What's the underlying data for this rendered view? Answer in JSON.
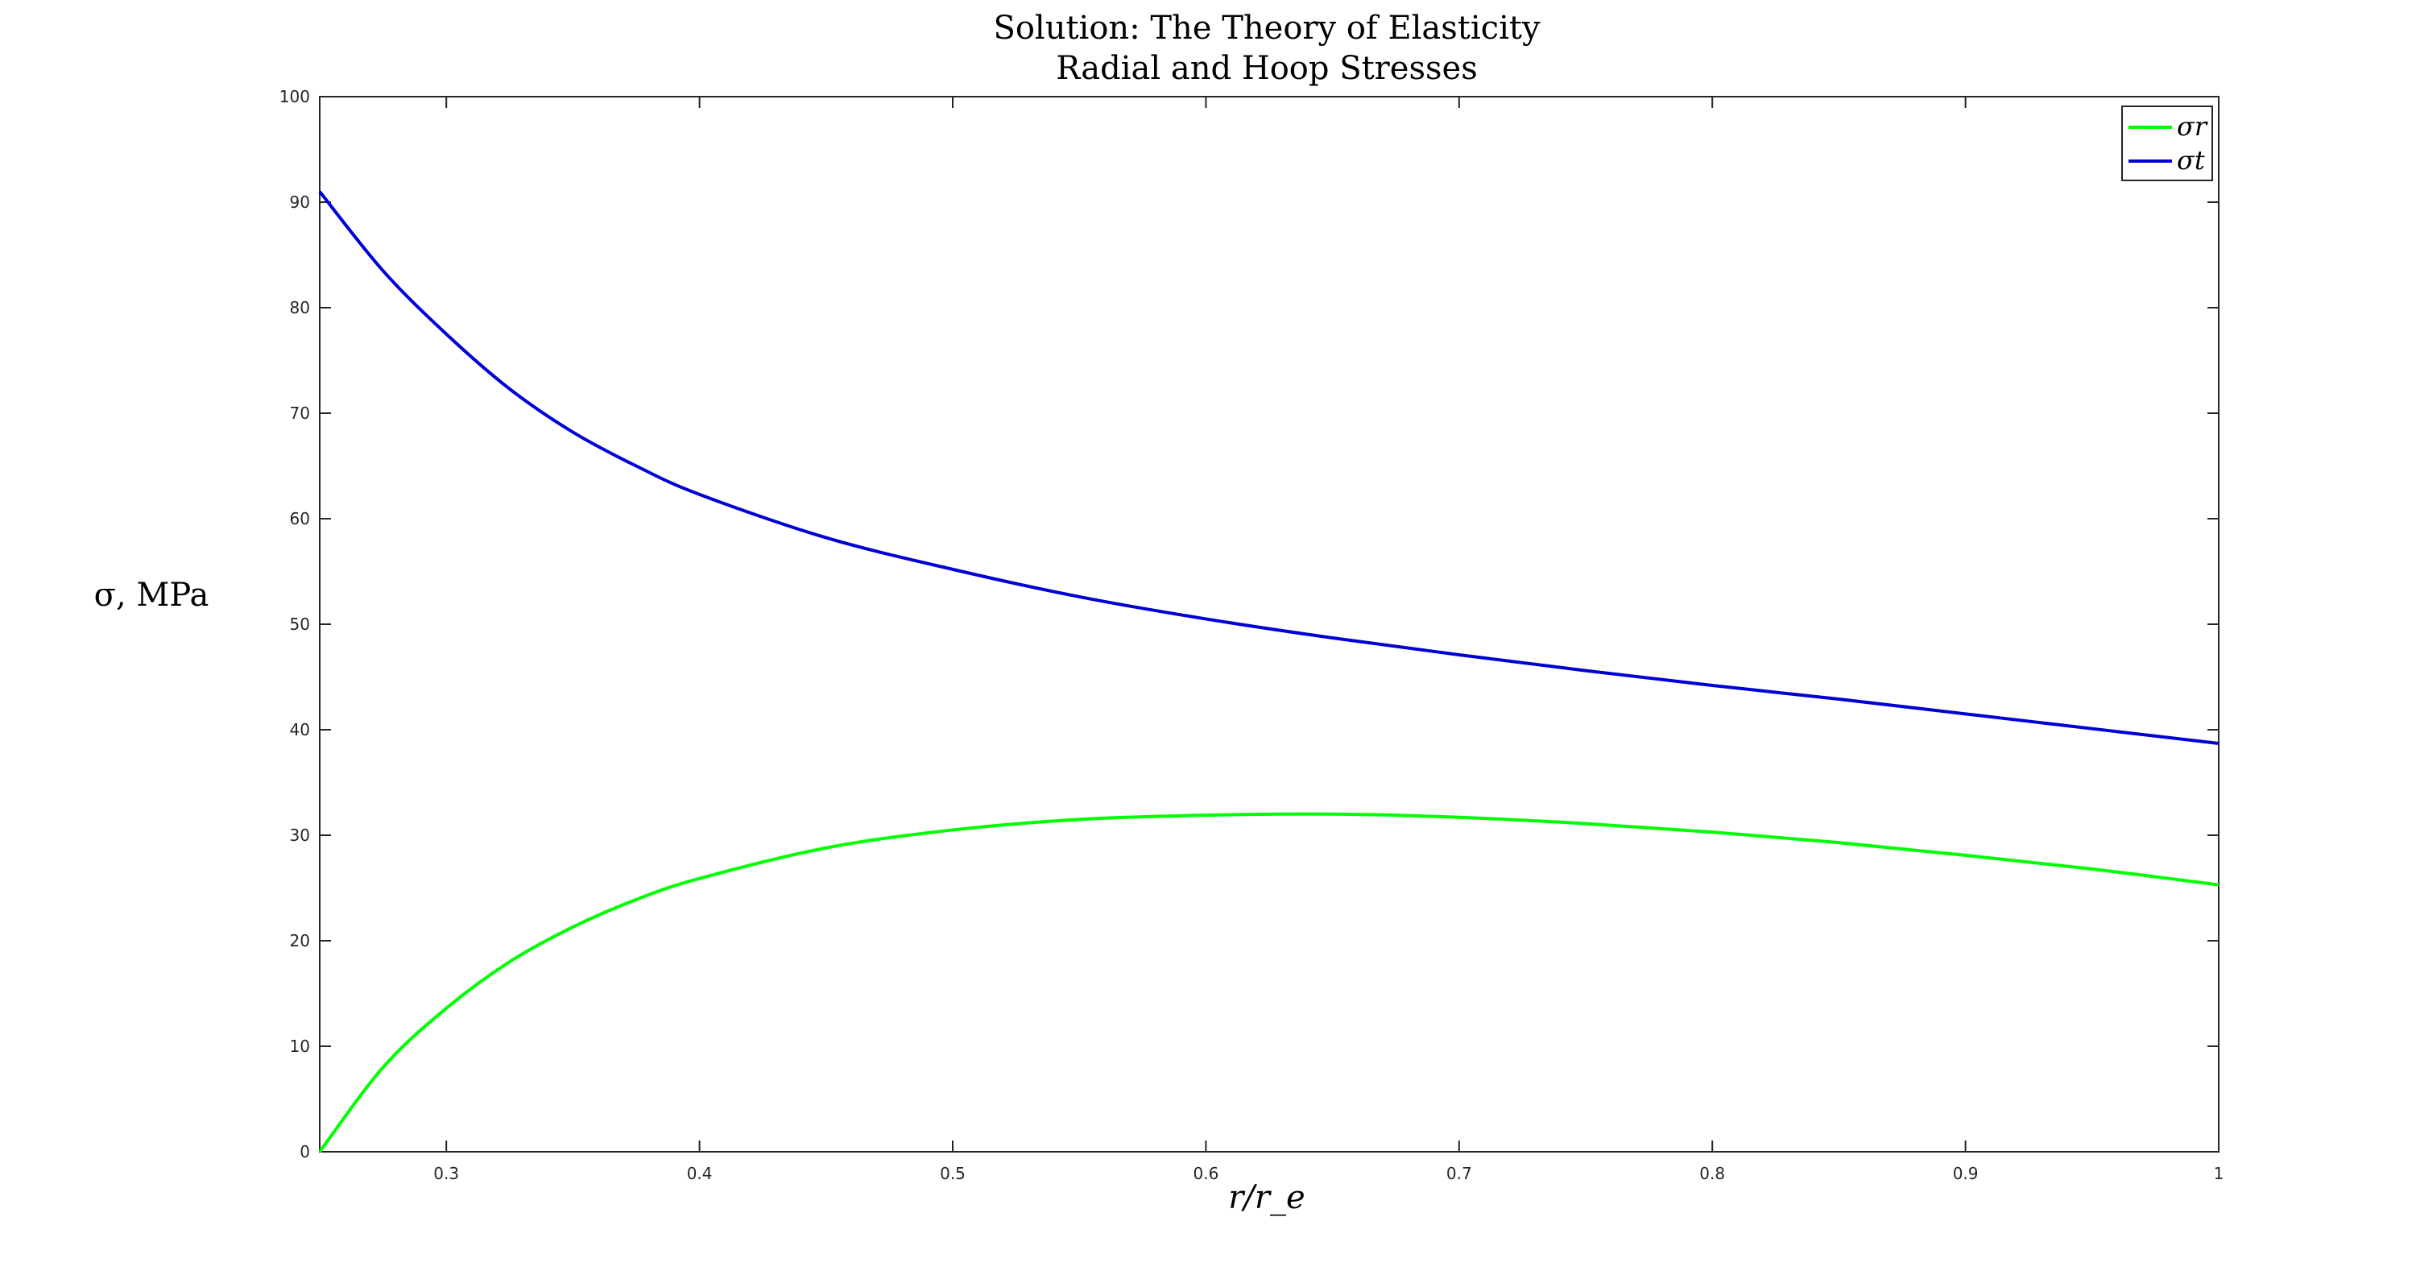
{
  "chart_data": {
    "type": "line",
    "title": "Solution: The Theory of Elasticity",
    "subtitle": "Radial and Hoop Stresses",
    "xlabel": "r/r_e",
    "ylabel": "σ, MPa",
    "xlim": [
      0.25,
      1.0
    ],
    "ylim": [
      0,
      100
    ],
    "x_ticks": [
      0.3,
      0.4,
      0.5,
      0.6,
      0.7,
      0.8,
      0.9,
      1
    ],
    "x_tick_labels": [
      "0.3",
      "0.4",
      "0.5",
      "0.6",
      "0.7",
      "0.8",
      "0.9",
      "1"
    ],
    "y_ticks": [
      0,
      10,
      20,
      30,
      40,
      50,
      60,
      70,
      80,
      90,
      100
    ],
    "y_tick_labels": [
      "0",
      "10",
      "20",
      "30",
      "40",
      "50",
      "60",
      "70",
      "80",
      "90",
      "100"
    ],
    "grid": false,
    "legend_position": "top-right",
    "series": [
      {
        "name": "σr",
        "color": "#00ff00",
        "x": [
          0.25,
          0.275,
          0.3,
          0.325,
          0.35,
          0.375,
          0.4,
          0.45,
          0.5,
          0.55,
          0.6,
          0.65,
          0.7,
          0.75,
          0.8,
          0.85,
          0.9,
          0.95,
          1.0
        ],
        "y": [
          0,
          8.0,
          13.6,
          18.0,
          21.3,
          23.9,
          25.9,
          28.8,
          30.5,
          31.5,
          31.9,
          32.0,
          31.7,
          31.1,
          30.3,
          29.3,
          28.1,
          26.8,
          25.3
        ]
      },
      {
        "name": "σt",
        "color": "#0000d6",
        "x": [
          0.25,
          0.275,
          0.3,
          0.325,
          0.35,
          0.375,
          0.4,
          0.45,
          0.5,
          0.55,
          0.6,
          0.65,
          0.7,
          0.75,
          0.8,
          0.85,
          0.9,
          0.95,
          1.0
        ],
        "y": [
          91.0,
          83.5,
          77.5,
          72.3,
          68.2,
          65.0,
          62.3,
          58.2,
          55.2,
          52.6,
          50.5,
          48.7,
          47.1,
          45.6,
          44.2,
          42.9,
          41.5,
          40.1,
          38.7
        ]
      }
    ]
  }
}
